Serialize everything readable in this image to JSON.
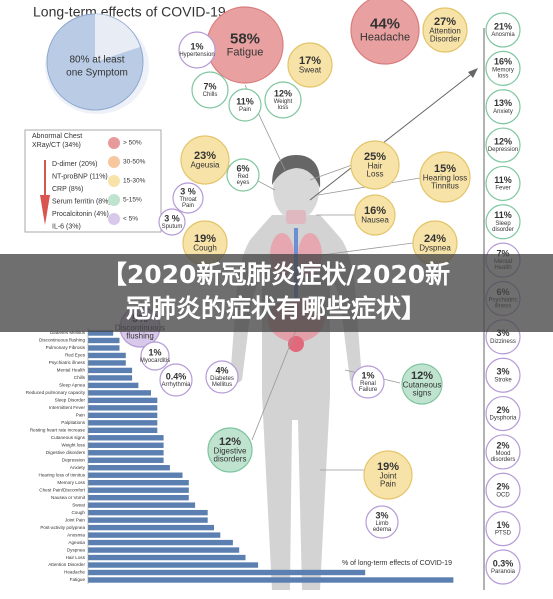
{
  "title": "Long-term effects of COVID-19",
  "summary": [
    "80% at least",
    "one Symptom"
  ],
  "lab_tests": [
    "Abnormal Chest",
    "XRay/CT (34%)",
    "D-dimer (20%)",
    "NT-proBNP (11%)",
    "CRP (8%)",
    "Serum ferritin (8%)",
    "Procalcitonin (4%)",
    "IL-6 (3%)"
  ],
  "scale": [
    "> 50%",
    "30-50%",
    "15-30%",
    "5-15%",
    "< 5%"
  ],
  "bubbles": [
    {
      "pct": "58%",
      "label": [
        "Fatigue"
      ]
    },
    {
      "pct": "44%",
      "label": [
        "Headache"
      ]
    },
    {
      "pct": "27%",
      "label": [
        "Attention",
        "Disorder"
      ]
    },
    {
      "pct": "1%",
      "label": [
        "Hypertension"
      ]
    },
    {
      "pct": "17%",
      "label": [
        "Sweat"
      ]
    },
    {
      "pct": "7%",
      "label": [
        "Chills"
      ]
    },
    {
      "pct": "11%",
      "label": [
        "Pain"
      ]
    },
    {
      "pct": "12%",
      "label": [
        "Weight",
        "loss"
      ]
    },
    {
      "pct": "23%",
      "label": [
        "Ageusia"
      ]
    },
    {
      "pct": "6%",
      "label": [
        "Red",
        "eyes"
      ]
    },
    {
      "pct": "3 %",
      "label": [
        "Throat",
        "Pain"
      ]
    },
    {
      "pct": "3 %",
      "label": [
        "Sputum"
      ]
    },
    {
      "pct": "19%",
      "label": [
        "Cough"
      ]
    },
    {
      "pct": "25%",
      "label": [
        "Hair",
        "Loss"
      ]
    },
    {
      "pct": "15%",
      "label": [
        "Hearing loss",
        "Tinnitus"
      ]
    },
    {
      "pct": "16%",
      "label": [
        "Nausea"
      ]
    },
    {
      "pct": "24%",
      "label": [
        "Dyspnea"
      ]
    },
    {
      "pct": "5%",
      "label": [
        "Discontinuous",
        "flushing"
      ]
    },
    {
      "pct": "1%",
      "label": [
        "Myocarditis"
      ]
    },
    {
      "pct": "0.4%",
      "label": [
        "Arrhythmia"
      ]
    },
    {
      "pct": "4%",
      "label": [
        "Diabetes",
        "Mellitus"
      ]
    },
    {
      "pct": "1%",
      "label": [
        "Renal",
        "Failure"
      ]
    },
    {
      "pct": "12%",
      "label": [
        "Cutaneous",
        "signs"
      ]
    },
    {
      "pct": "12%",
      "label": [
        "Digestive",
        "disorders"
      ]
    },
    {
      "pct": "19%",
      "label": [
        "Joint",
        "Pain"
      ]
    },
    {
      "pct": "3%",
      "label": [
        "Limb",
        "edema"
      ]
    }
  ],
  "side": [
    {
      "pct": "21%",
      "label": [
        "Anosmia"
      ]
    },
    {
      "pct": "16%",
      "label": [
        "Memory",
        "loss"
      ]
    },
    {
      "pct": "13%",
      "label": [
        "Anxiety"
      ]
    },
    {
      "pct": "12%",
      "label": [
        "Depression"
      ]
    },
    {
      "pct": "11%",
      "label": [
        "Fever"
      ]
    },
    {
      "pct": "11%",
      "label": [
        "Sleep",
        "disorder"
      ]
    },
    {
      "pct": "7%",
      "label": [
        "Mental",
        "Health"
      ]
    },
    {
      "pct": "6%",
      "label": [
        "Psychiatric",
        "illness"
      ]
    },
    {
      "pct": "3%",
      "label": [
        "Dizziness"
      ]
    },
    {
      "pct": "3%",
      "label": [
        "Stroke"
      ]
    },
    {
      "pct": "2%",
      "label": [
        "Dysphoria"
      ]
    },
    {
      "pct": "2%",
      "label": [
        "Mood",
        "disorders"
      ]
    },
    {
      "pct": "2%",
      "label": [
        "OCD"
      ]
    },
    {
      "pct": "1%",
      "label": [
        "PTSD"
      ]
    },
    {
      "pct": "0.3%",
      "label": [
        "Paranoia"
      ]
    }
  ],
  "bars": {
    "caption": "% of long-term effects of COVID-19",
    "items": [
      {
        "name": "Diabetes Mellitus",
        "value": 4
      },
      {
        "name": "Discontinuous flushing",
        "value": 5
      },
      {
        "name": "Pulmonary Fibrosis",
        "value": 5
      },
      {
        "name": "Red Eyes",
        "value": 6
      },
      {
        "name": "Psychiatric illness",
        "value": 6
      },
      {
        "name": "Mental Health",
        "value": 7
      },
      {
        "name": "Chills",
        "value": 7
      },
      {
        "name": "Sleep Apnea",
        "value": 8
      },
      {
        "name": "Reduced pulmonary capacity",
        "value": 10
      },
      {
        "name": "Sleep Disorder",
        "value": 11
      },
      {
        "name": "Intermittent Fever",
        "value": 11
      },
      {
        "name": "Pain",
        "value": 11
      },
      {
        "name": "Palpitations",
        "value": 11
      },
      {
        "name": "Resting heart rate increase",
        "value": 11
      },
      {
        "name": "Cutaneous signs",
        "value": 12
      },
      {
        "name": "Weight loss",
        "value": 12
      },
      {
        "name": "Digestive disorders",
        "value": 12
      },
      {
        "name": "Depression",
        "value": 12
      },
      {
        "name": "Anxiety",
        "value": 13
      },
      {
        "name": "Hearing loss of tinnitus",
        "value": 15
      },
      {
        "name": "Memory Loss",
        "value": 16
      },
      {
        "name": "Chest Pain/Discomfort",
        "value": 16
      },
      {
        "name": "Nausea or Vomit",
        "value": 16
      },
      {
        "name": "Sweat",
        "value": 17
      },
      {
        "name": "Cough",
        "value": 19
      },
      {
        "name": "Joint Pain",
        "value": 19
      },
      {
        "name": "Post-activity polypnea",
        "value": 20
      },
      {
        "name": "Anosmia",
        "value": 21
      },
      {
        "name": "Ageusia",
        "value": 23
      },
      {
        "name": "Dyspnea",
        "value": 24
      },
      {
        "name": "Hair Loss",
        "value": 25
      },
      {
        "name": "Attention Disorder",
        "value": 27
      },
      {
        "name": "Headache",
        "value": 44
      },
      {
        "name": "Fatigue",
        "value": 58
      }
    ]
  },
  "banner": [
    "【2020新冠肺炎症状/2020新",
    "冠肺炎的症状有哪些症状】"
  ]
}
